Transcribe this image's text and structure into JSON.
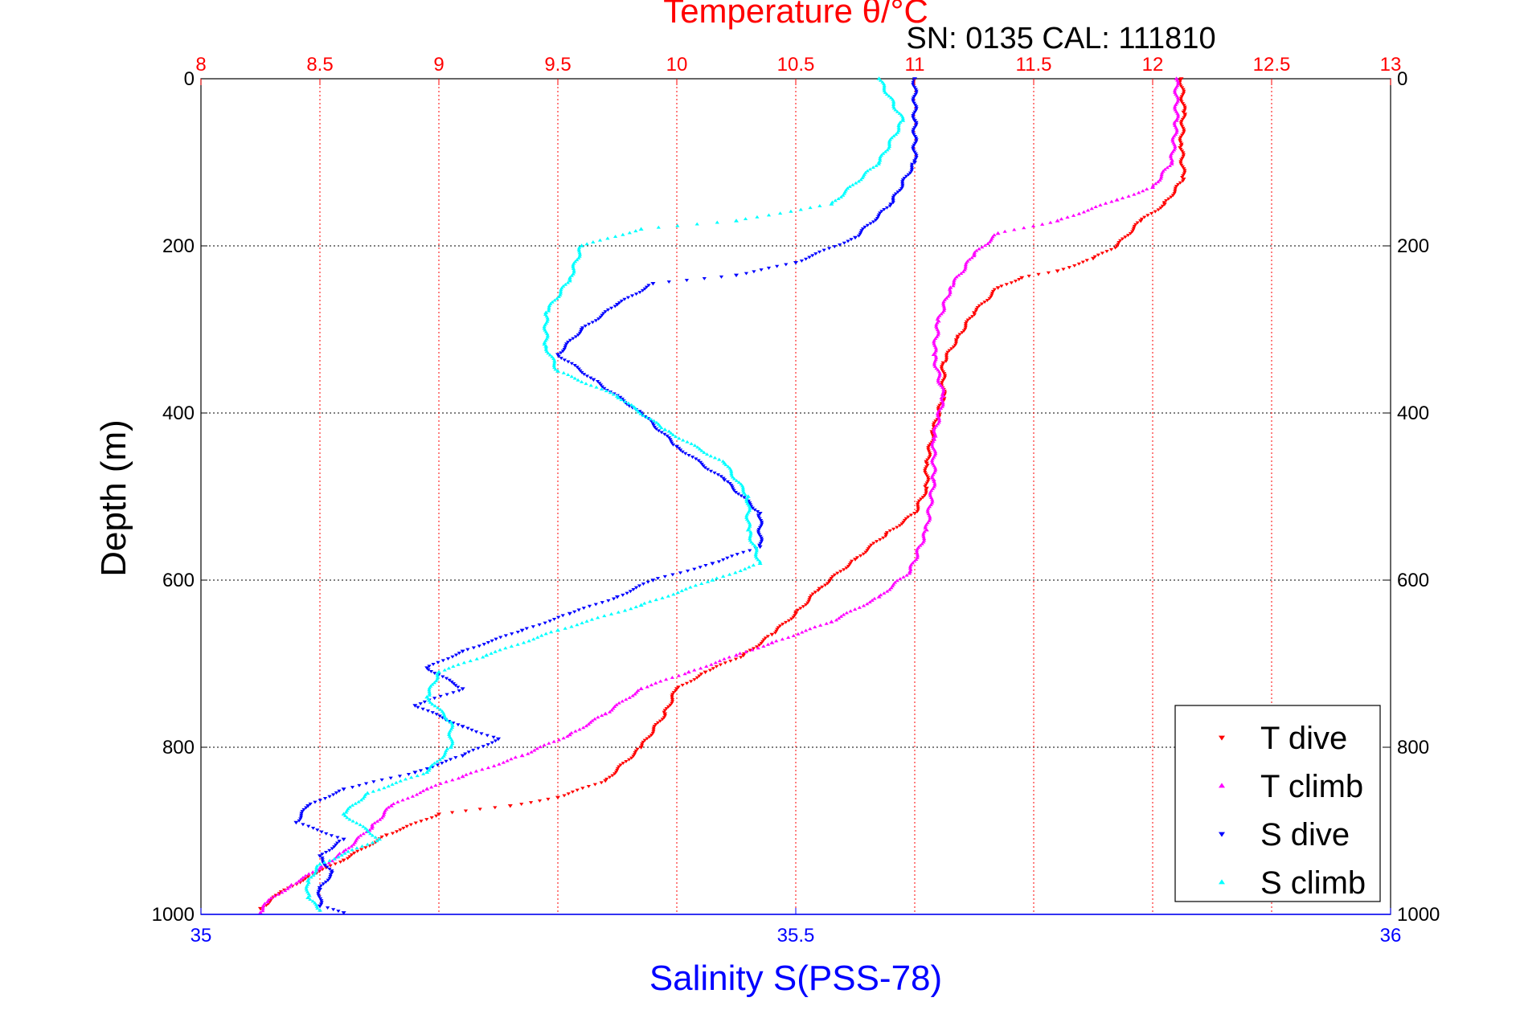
{
  "chart_data": {
    "type": "scatter",
    "title": "Temperature θ/°C",
    "subtitle": "SN: 0135  CAL: 111810",
    "ylabel": "Depth (m)",
    "xlabel_bottom": "Salinity S(PSS-78)",
    "xlabel_top": "Temperature θ/°C",
    "ylim": [
      1000,
      0
    ],
    "x_bottom_lim": [
      35,
      36
    ],
    "x_top_lim": [
      8,
      13
    ],
    "y_ticks": [
      "0",
      "200",
      "400",
      "600",
      "800",
      "1000"
    ],
    "x_bottom_ticks": [
      "35",
      "35.5",
      "36"
    ],
    "x_top_ticks": [
      "8",
      "8.5",
      "9",
      "9.5",
      "10",
      "10.5",
      "11",
      "11.5",
      "12",
      "12.5",
      "13"
    ],
    "grid": true,
    "legend_position": "bottom-right",
    "series": [
      {
        "name": "T dive",
        "color": "#ff0000",
        "axis": "top",
        "marker": "triangle-down",
        "points": [
          [
            12.12,
            0
          ],
          [
            12.13,
            40
          ],
          [
            12.12,
            80
          ],
          [
            12.13,
            120
          ],
          [
            12.05,
            150
          ],
          [
            11.95,
            170
          ],
          [
            11.85,
            200
          ],
          [
            11.75,
            215
          ],
          [
            11.6,
            230
          ],
          [
            11.45,
            238
          ],
          [
            11.35,
            250
          ],
          [
            11.25,
            280
          ],
          [
            11.18,
            310
          ],
          [
            11.12,
            340
          ],
          [
            11.12,
            380
          ],
          [
            11.08,
            420
          ],
          [
            11.05,
            460
          ],
          [
            11.05,
            490
          ],
          [
            11.0,
            520
          ],
          [
            10.88,
            545
          ],
          [
            10.75,
            575
          ],
          [
            10.6,
            610
          ],
          [
            10.5,
            640
          ],
          [
            10.4,
            665
          ],
          [
            10.28,
            690
          ],
          [
            10.12,
            710
          ],
          [
            10.0,
            730
          ],
          [
            9.95,
            760
          ],
          [
            9.85,
            800
          ],
          [
            9.7,
            840
          ],
          [
            9.5,
            860
          ],
          [
            9.3,
            870
          ],
          [
            9.0,
            880
          ],
          [
            8.78,
            905
          ],
          [
            8.6,
            935
          ],
          [
            8.45,
            955
          ],
          [
            8.33,
            975
          ],
          [
            8.25,
            993
          ]
        ]
      },
      {
        "name": "T climb",
        "color": "#ff00ff",
        "axis": "top",
        "marker": "triangle-up",
        "points": [
          [
            12.1,
            0
          ],
          [
            12.1,
            50
          ],
          [
            12.08,
            100
          ],
          [
            12.0,
            130
          ],
          [
            11.85,
            145
          ],
          [
            11.6,
            170
          ],
          [
            11.35,
            185
          ],
          [
            11.25,
            210
          ],
          [
            11.15,
            250
          ],
          [
            11.1,
            290
          ],
          [
            11.08,
            330
          ],
          [
            11.12,
            380
          ],
          [
            11.08,
            430
          ],
          [
            11.08,
            480
          ],
          [
            11.05,
            540
          ],
          [
            10.98,
            590
          ],
          [
            10.85,
            620
          ],
          [
            10.65,
            650
          ],
          [
            10.4,
            675
          ],
          [
            10.25,
            690
          ],
          [
            10.05,
            710
          ],
          [
            9.85,
            730
          ],
          [
            9.7,
            760
          ],
          [
            9.55,
            785
          ],
          [
            9.35,
            810
          ],
          [
            9.1,
            835
          ],
          [
            8.95,
            850
          ],
          [
            8.8,
            870
          ],
          [
            8.72,
            895
          ],
          [
            8.6,
            925
          ],
          [
            8.5,
            945
          ],
          [
            8.38,
            965
          ],
          [
            8.28,
            985
          ],
          [
            8.25,
            998
          ]
        ]
      },
      {
        "name": "S dive",
        "color": "#0000ff",
        "axis": "bottom",
        "marker": "triangle-down",
        "points": [
          [
            35.6,
            0
          ],
          [
            35.6,
            50
          ],
          [
            35.6,
            100
          ],
          [
            35.58,
            150
          ],
          [
            35.55,
            190
          ],
          [
            35.5,
            220
          ],
          [
            35.45,
            235
          ],
          [
            35.38,
            245
          ],
          [
            35.35,
            270
          ],
          [
            35.32,
            300
          ],
          [
            35.3,
            330
          ],
          [
            35.33,
            360
          ],
          [
            35.37,
            400
          ],
          [
            35.4,
            440
          ],
          [
            35.44,
            480
          ],
          [
            35.47,
            520
          ],
          [
            35.47,
            560
          ],
          [
            35.43,
            580
          ],
          [
            35.38,
            600
          ],
          [
            35.35,
            620
          ],
          [
            35.31,
            640
          ],
          [
            35.27,
            660
          ],
          [
            35.22,
            685
          ],
          [
            35.19,
            705
          ],
          [
            35.22,
            730
          ],
          [
            35.18,
            750
          ],
          [
            35.22,
            775
          ],
          [
            35.25,
            790
          ],
          [
            35.22,
            810
          ],
          [
            35.18,
            830
          ],
          [
            35.12,
            850
          ],
          [
            35.09,
            870
          ],
          [
            35.08,
            890
          ],
          [
            35.12,
            910
          ],
          [
            35.1,
            930
          ],
          [
            35.11,
            950
          ],
          [
            35.1,
            970
          ],
          [
            35.1,
            990
          ],
          [
            35.12,
            998
          ]
        ]
      },
      {
        "name": "S climb",
        "color": "#00ffff",
        "axis": "bottom",
        "marker": "triangle-up",
        "points": [
          [
            35.57,
            0
          ],
          [
            35.59,
            50
          ],
          [
            35.57,
            100
          ],
          [
            35.53,
            150
          ],
          [
            35.45,
            170
          ],
          [
            35.37,
            180
          ],
          [
            35.32,
            200
          ],
          [
            35.31,
            240
          ],
          [
            35.29,
            280
          ],
          [
            35.29,
            320
          ],
          [
            35.3,
            350
          ],
          [
            35.35,
            380
          ],
          [
            35.39,
            420
          ],
          [
            35.44,
            460
          ],
          [
            35.46,
            500
          ],
          [
            35.46,
            540
          ],
          [
            35.47,
            580
          ],
          [
            35.43,
            600
          ],
          [
            35.37,
            630
          ],
          [
            35.3,
            660
          ],
          [
            35.24,
            690
          ],
          [
            35.2,
            710
          ],
          [
            35.19,
            740
          ],
          [
            35.21,
            770
          ],
          [
            35.21,
            800
          ],
          [
            35.19,
            830
          ],
          [
            35.14,
            855
          ],
          [
            35.12,
            880
          ],
          [
            35.15,
            910
          ],
          [
            35.1,
            940
          ],
          [
            35.09,
            960
          ],
          [
            35.09,
            980
          ],
          [
            35.1,
            995
          ]
        ]
      }
    ]
  }
}
